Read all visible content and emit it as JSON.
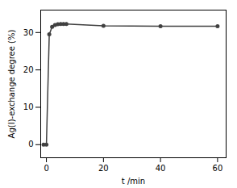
{
  "chart_data": {
    "type": "line",
    "xlabel": "t /min",
    "ylabel": "Ag(I)-exchange degree (%)",
    "x": [
      -1,
      0,
      1,
      2,
      3,
      4,
      5,
      6,
      7,
      20,
      40,
      60
    ],
    "values": [
      0,
      0,
      29.5,
      31.5,
      32.0,
      32.2,
      32.3,
      32.3,
      32.3,
      31.8,
      31.7,
      31.7
    ],
    "color": "#404040",
    "marker": "circle",
    "xlim": [
      -2,
      63
    ],
    "ylim": [
      -3.5,
      36
    ],
    "xticks": [
      0,
      20,
      40,
      60
    ],
    "yticks": [
      0,
      10,
      20,
      30
    ],
    "grid": false
  }
}
